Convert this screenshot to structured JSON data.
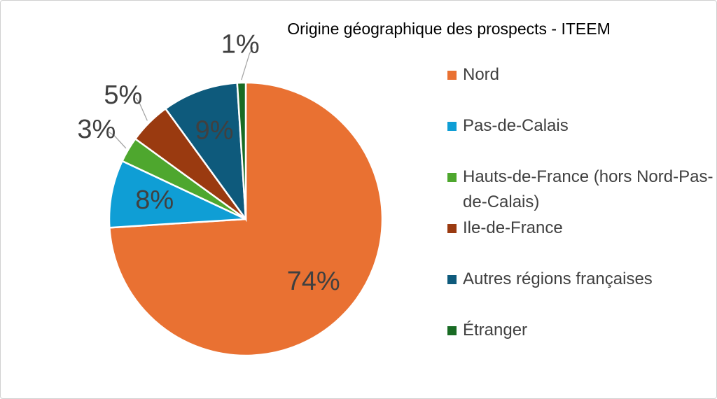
{
  "chart_data": {
    "type": "pie",
    "title": "Origine géographique des prospects - ITEEM",
    "categories": [
      "Nord",
      "Pas-de-Calais",
      "Hauts-de-France (hors Nord-Pas-de-Calais)",
      "Ile-de-France",
      "Autres régions françaises",
      "Étranger"
    ],
    "values": [
      74,
      8,
      3,
      5,
      9,
      1
    ],
    "value_labels": [
      "74%",
      "8%",
      "3%",
      "5%",
      "9%",
      "1%"
    ],
    "colors": [
      "#E97132",
      "#0F9ED5",
      "#4EA72E",
      "#9A3A10",
      "#0E5A7C",
      "#196B24"
    ]
  }
}
